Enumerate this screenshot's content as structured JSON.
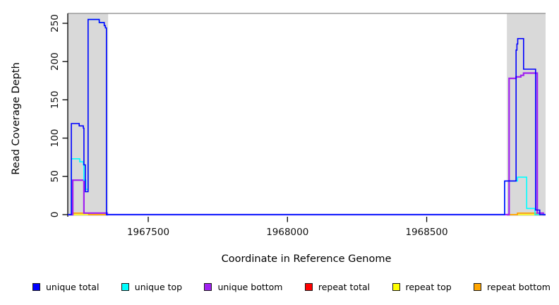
{
  "chart_data": {
    "type": "line",
    "title": "",
    "xlabel": "Coordinate in Reference Genome",
    "ylabel": "Read Coverage Depth",
    "xlim": [
      1967211,
      1968927
    ],
    "ylim": [
      0,
      263
    ],
    "grid": false,
    "legend_position": "bottom",
    "x_ticks": [
      {
        "value": 1967500,
        "label": "1967500"
      },
      {
        "value": 1968000,
        "label": "1968000"
      },
      {
        "value": 1968500,
        "label": "1968500"
      }
    ],
    "y_ticks": [
      {
        "value": 0,
        "label": "0"
      },
      {
        "value": 50,
        "label": "50"
      },
      {
        "value": 100,
        "label": "100"
      },
      {
        "value": 150,
        "label": "150"
      },
      {
        "value": 200,
        "label": "200"
      },
      {
        "value": 250,
        "label": "250"
      }
    ],
    "highlight_regions": [
      {
        "x0": 1967211,
        "x1": 1967356
      },
      {
        "x0": 1968788,
        "x1": 1968927
      }
    ],
    "region_color": "#d9d9d9",
    "top_rule_color": "#9a9a9a",
    "axis_color": "#000000",
    "series": [
      {
        "name": "repeat total",
        "color": "#FF0000",
        "width": 1.6,
        "points": [
          [
            1967211,
            0
          ],
          [
            1967229,
            2
          ],
          [
            1967286,
            0
          ],
          [
            1968826,
            2
          ],
          [
            1968892,
            0
          ],
          [
            1968927,
            0
          ]
        ]
      },
      {
        "name": "repeat top",
        "color": "#FFFF00",
        "width": 1.6,
        "points": [
          [
            1967211,
            0
          ],
          [
            1968927,
            0
          ]
        ]
      },
      {
        "name": "repeat bottom",
        "color": "#FFA500",
        "width": 1.6,
        "points": [
          [
            1967211,
            0
          ],
          [
            1967229,
            2
          ],
          [
            1967286,
            0
          ],
          [
            1968826,
            2
          ],
          [
            1968892,
            0
          ],
          [
            1968927,
            0
          ]
        ]
      },
      {
        "name": "unique bottom",
        "color": "#A020F0",
        "width": 2.2,
        "points": [
          [
            1967211,
            0
          ],
          [
            1967229,
            45
          ],
          [
            1967269,
            2
          ],
          [
            1967353,
            0
          ],
          [
            1968796,
            178
          ],
          [
            1968821,
            180
          ],
          [
            1968838,
            182
          ],
          [
            1968848,
            185
          ],
          [
            1968897,
            2
          ],
          [
            1968919,
            0
          ],
          [
            1968927,
            0
          ]
        ]
      },
      {
        "name": "unique top",
        "color": "#00FFFF",
        "width": 1.6,
        "points": [
          [
            1967211,
            0
          ],
          [
            1967224,
            73
          ],
          [
            1967254,
            69
          ],
          [
            1967267,
            65
          ],
          [
            1967269,
            45
          ],
          [
            1967276,
            33
          ],
          [
            1967284,
            255
          ],
          [
            1967324,
            251
          ],
          [
            1967342,
            247
          ],
          [
            1967346,
            244
          ],
          [
            1967350,
            0
          ],
          [
            1968780,
            44
          ],
          [
            1968826,
            49
          ],
          [
            1968859,
            8
          ],
          [
            1968889,
            0
          ],
          [
            1968927,
            0
          ]
        ]
      },
      {
        "name": "unique total",
        "color": "#0000FF",
        "width": 1.6,
        "points": [
          [
            1967211,
            0
          ],
          [
            1967224,
            119
          ],
          [
            1967252,
            116
          ],
          [
            1967267,
            113
          ],
          [
            1967269,
            65
          ],
          [
            1967274,
            30
          ],
          [
            1967284,
            255
          ],
          [
            1967324,
            251
          ],
          [
            1967342,
            247
          ],
          [
            1967346,
            244
          ],
          [
            1967350,
            0
          ],
          [
            1968780,
            44
          ],
          [
            1968821,
            215
          ],
          [
            1968824,
            223
          ],
          [
            1968827,
            230
          ],
          [
            1968848,
            190
          ],
          [
            1968891,
            6
          ],
          [
            1968906,
            0
          ],
          [
            1968927,
            0
          ]
        ]
      }
    ],
    "legend": [
      {
        "label": "unique total",
        "color": "#0000FF"
      },
      {
        "label": "unique top",
        "color": "#00FFFF"
      },
      {
        "label": "unique bottom",
        "color": "#A020F0"
      },
      {
        "label": "repeat total",
        "color": "#FF0000"
      },
      {
        "label": "repeat top",
        "color": "#FFFF00"
      },
      {
        "label": "repeat bottom",
        "color": "#FFA500"
      }
    ]
  }
}
